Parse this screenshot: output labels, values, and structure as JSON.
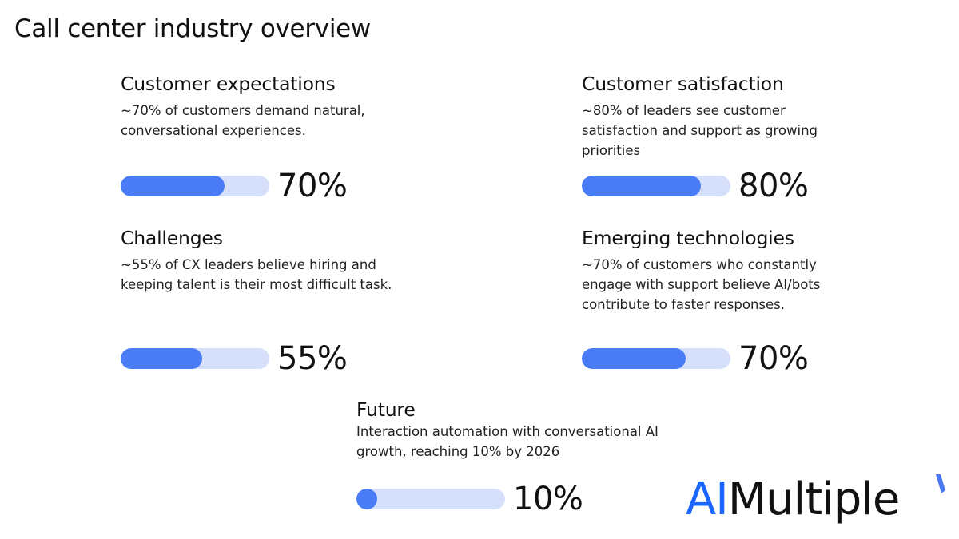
{
  "title": "Call center industry overview",
  "sections": [
    {
      "heading": "Customer expectations",
      "text": "~70% of customers demand natural, conversational experiences.",
      "value": 70,
      "label": "70%"
    },
    {
      "heading": "Customer satisfaction",
      "text": "~80% of leaders see customer satisfaction and support as growing priorities",
      "value": 80,
      "label": "80%"
    },
    {
      "heading": "Challenges",
      "text": "~55% of CX leaders believe hiring and keeping talent is their most difficult task.",
      "value": 55,
      "label": "55%"
    },
    {
      "heading": "Emerging technologies",
      "text": "~70% of customers who constantly engage with support believe AI/bots contribute to faster responses.",
      "value": 70,
      "label": "70%"
    },
    {
      "heading": "Future",
      "text": "Interaction automation with conversational AI growth, reaching 10% by 2026",
      "value": 10,
      "label": "10%"
    }
  ],
  "logo": {
    "part1": "AI",
    "part2": "Multiple"
  },
  "colors": {
    "fill": "#4a7cf6",
    "track": "#d6e0fb",
    "logo_blue": "#1a66ff"
  },
  "chart_data": {
    "type": "bar",
    "title": "Call center industry overview",
    "categories": [
      "Customer expectations",
      "Customer satisfaction",
      "Challenges",
      "Emerging technologies",
      "Future"
    ],
    "values": [
      70,
      80,
      55,
      70,
      10
    ],
    "ylim": [
      0,
      100
    ]
  }
}
